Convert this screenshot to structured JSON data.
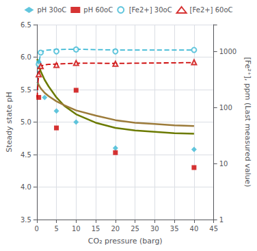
{
  "chart_data": {
    "type": "scatter",
    "xlabel": "CO₂ pressure (barg)",
    "ylabel": "Steady state pH",
    "y2label": "[Fe²⁺], ppm (Last measured value)",
    "xlim": [
      0,
      45
    ],
    "xticks": [
      0,
      5,
      10,
      15,
      20,
      25,
      30,
      35,
      40,
      45
    ],
    "ylim": [
      3.5,
      6.5
    ],
    "yticks": [
      3.5,
      {
        "value": 4.0,
        "label": "4.0"
      },
      4.5,
      {
        "value": 5.0,
        "label": "5.0"
      },
      5.5,
      {
        "value": 6.0,
        "label": "6.0"
      },
      6.5
    ],
    "y2lim": [
      1,
      3000
    ],
    "y2ticks": [
      1,
      10,
      100,
      1000
    ],
    "log": "y2",
    "grid": true,
    "legend": "top",
    "series": [
      {
        "name": "pH 30oC",
        "type": "scatter",
        "marker": "diamond",
        "color": "#3BB8D4",
        "x": [
          0.5,
          2,
          5,
          10,
          20,
          40
        ],
        "values": [
          5.93,
          5.38,
          5.17,
          5.0,
          4.6,
          4.58
        ]
      },
      {
        "name": "pH 60oC",
        "type": "scatter",
        "marker": "square",
        "color": "#CC0000",
        "x": [
          0.5,
          5,
          10,
          20,
          40
        ],
        "values": [
          5.38,
          4.91,
          5.49,
          4.53,
          4.3
        ]
      },
      {
        "name": "[Fe2+] 30oC",
        "type": "scatter",
        "marker": "open_circle",
        "color": "#3BB8D4",
        "axis": "y2",
        "x": [
          0.5,
          1,
          5,
          10,
          20,
          40
        ],
        "values": [
          590,
          950,
          1000,
          1080,
          1000,
          1060
        ]
      },
      {
        "name": "[Fe2+] 60oC",
        "type": "scatter",
        "marker": "open_triangle",
        "color": "#CC0000",
        "axis": "y2",
        "x": [
          0.5,
          1,
          5,
          10,
          20,
          40
        ],
        "values": [
          390,
          545,
          570,
          620,
          600,
          640
        ]
      },
      {
        "type": "line",
        "line_style": "solid",
        "color": "#6B7A00",
        "x": [
          0.1,
          0.3,
          0.5,
          1,
          2,
          3,
          5,
          7,
          10,
          15,
          20,
          25,
          30,
          35,
          40
        ],
        "values": [
          5.97,
          5.93,
          5.88,
          5.78,
          5.65,
          5.55,
          5.38,
          5.25,
          5.12,
          4.99,
          4.91,
          4.87,
          4.85,
          4.83,
          4.82
        ]
      },
      {
        "type": "line",
        "line_style": "solid",
        "color": "#9C7B3A",
        "x": [
          0.1,
          0.3,
          0.5,
          1,
          2,
          3,
          5,
          7,
          10,
          15,
          20,
          25,
          30,
          35,
          40
        ],
        "values": [
          5.62,
          5.6,
          5.57,
          5.52,
          5.45,
          5.4,
          5.32,
          5.26,
          5.18,
          5.1,
          5.03,
          4.99,
          4.97,
          4.95,
          4.94
        ]
      },
      {
        "type": "line",
        "line_style": "dashed",
        "color": "#3BB8D4",
        "axis": "y2",
        "x": [
          0.1,
          0.3,
          0.5,
          1,
          2,
          3,
          5,
          10,
          15,
          20,
          25,
          30,
          35,
          40
        ],
        "values": [
          200,
          380,
          590,
          950,
          1040,
          1060,
          1080,
          1090,
          1075,
          1060,
          1060,
          1060,
          1060,
          1060
        ]
      },
      {
        "type": "line",
        "line_style": "dashed",
        "color": "#CC0000",
        "axis": "y2",
        "x": [
          0.1,
          0.3,
          0.5,
          1,
          2,
          3,
          5,
          10,
          15,
          20,
          25,
          30,
          35,
          40
        ],
        "values": [
          150,
          280,
          390,
          545,
          575,
          585,
          595,
          615,
          615,
          610,
          615,
          620,
          625,
          630
        ]
      }
    ]
  }
}
